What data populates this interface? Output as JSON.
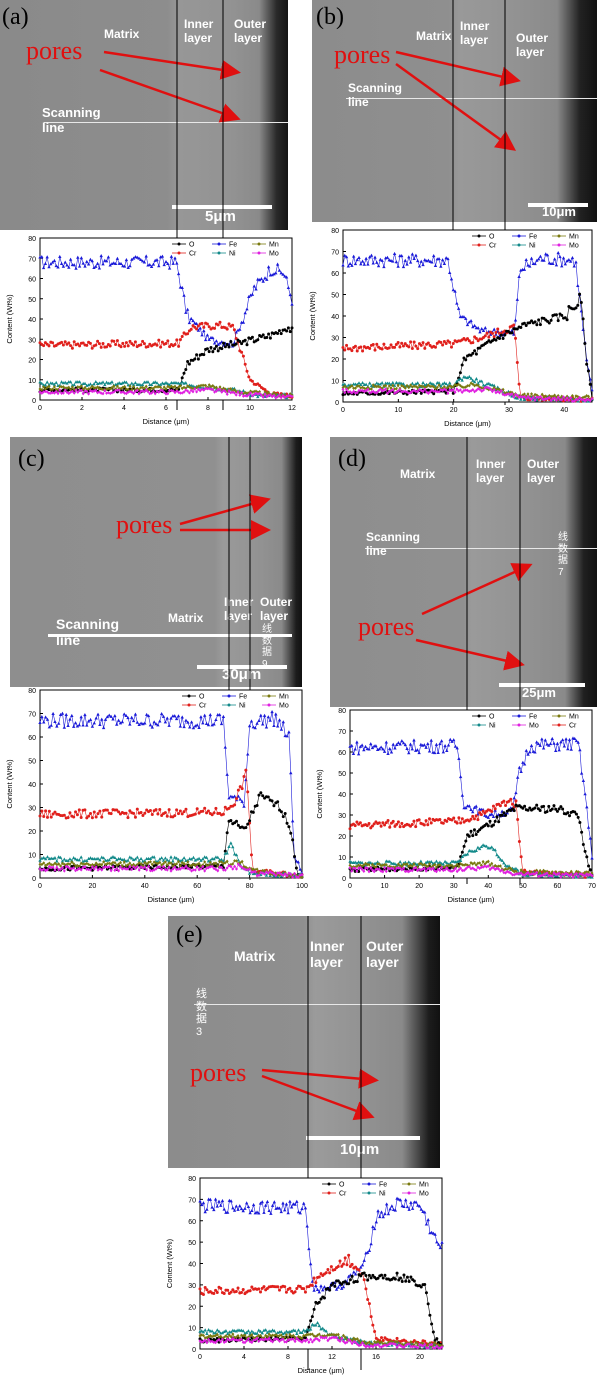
{
  "panels": [
    {
      "label": "(a)",
      "matrix": "Matrix",
      "inner": "Inner\nlayer",
      "outer": "Outer\nlayer",
      "pores": "pores",
      "scan": "Scanning line",
      "scale": "5μm"
    },
    {
      "label": "(b)",
      "matrix": "Matrix",
      "inner": "Inner\nlayer",
      "outer": "Outer layer",
      "pores": "pores",
      "scan": "Scanning line",
      "scale": "10μm"
    },
    {
      "label": "(c)",
      "matrix": "Matrix",
      "inner": "Inner\nlayer",
      "outer": "Outer\nlayer",
      "pores": "pores",
      "scan": "Scanning line",
      "scale": "30μm",
      "scan_tag": "线数据 9"
    },
    {
      "label": "(d)",
      "matrix": "Matrix",
      "inner": "Inner\nlayer",
      "outer": "Outer\nlayer",
      "pores": "pores",
      "scan": "Scanning line",
      "scale": "25μm",
      "scan_tag": "线数据 7"
    },
    {
      "label": "(e)",
      "matrix": "Matrix",
      "inner": "Inner\nlayer",
      "outer": "Outer\nlayer",
      "pores": "pores",
      "scan": "线数据 3",
      "scale": "10μm"
    }
  ],
  "colors": {
    "O": "#000000",
    "Cr": "#e0201c",
    "Fe": "#1a1ad8",
    "Ni": "#138a8a",
    "Mn": "#7a7a10",
    "Mo": "#e020e0"
  },
  "chart_data": [
    {
      "type": "line",
      "xlabel": "Distance (μm)",
      "ylabel": "Content (Wt%)",
      "xlim": [
        0,
        12
      ],
      "ylim": [
        0,
        80
      ],
      "xticks": [
        0,
        2,
        4,
        6,
        8,
        10,
        12
      ],
      "yticks": [
        0,
        10,
        20,
        30,
        40,
        50,
        60,
        70,
        80
      ],
      "legend": [
        "O",
        "Fe",
        "Mn",
        "Cr",
        "Ni",
        "Mo"
      ],
      "interfaces": [
        6.8,
        9.2
      ],
      "series": [
        {
          "name": "Fe",
          "values": [
            [
              0,
              68
            ],
            [
              6.5,
              68
            ],
            [
              7.0,
              42
            ],
            [
              8.0,
              30
            ],
            [
              9.2,
              28
            ],
            [
              10.2,
              55
            ],
            [
              11.0,
              65
            ],
            [
              11.6,
              63
            ],
            [
              12,
              50
            ]
          ]
        },
        {
          "name": "Cr",
          "values": [
            [
              0,
              27
            ],
            [
              6.6,
              28
            ],
            [
              7.2,
              36
            ],
            [
              8.5,
              37
            ],
            [
              9.2,
              36
            ],
            [
              10.0,
              10
            ],
            [
              11.0,
              3
            ],
            [
              12,
              2
            ]
          ]
        },
        {
          "name": "O",
          "values": [
            [
              0,
              5
            ],
            [
              6.6,
              5
            ],
            [
              7.0,
              18
            ],
            [
              8.0,
              25
            ],
            [
              9.5,
              28
            ],
            [
              11.0,
              32
            ],
            [
              11.8,
              36
            ],
            [
              12,
              34
            ]
          ]
        },
        {
          "name": "Ni",
          "values": [
            [
              0,
              8
            ],
            [
              6.6,
              8
            ],
            [
              7.5,
              7
            ],
            [
              9.2,
              5
            ],
            [
              10.5,
              2
            ],
            [
              12,
              2
            ]
          ]
        },
        {
          "name": "Mn",
          "values": [
            [
              0,
              6
            ],
            [
              6.6,
              6
            ],
            [
              8.0,
              7
            ],
            [
              9.5,
              4
            ],
            [
              12,
              2
            ]
          ]
        },
        {
          "name": "Mo",
          "values": [
            [
              0,
              4
            ],
            [
              6.6,
              4
            ],
            [
              8.0,
              5
            ],
            [
              9.5,
              3
            ],
            [
              12,
              1
            ]
          ]
        }
      ]
    },
    {
      "type": "line",
      "xlabel": "Distance (μm)",
      "ylabel": "Content (Wt%)",
      "xlim": [
        0,
        45
      ],
      "ylim": [
        0,
        80
      ],
      "xticks": [
        0,
        10,
        20,
        30,
        40
      ],
      "yticks": [
        0,
        10,
        20,
        30,
        40,
        50,
        60,
        70,
        80
      ],
      "legend": [
        "O",
        "Fe",
        "Mn",
        "Cr",
        "Ni",
        "Mo"
      ],
      "interfaces": [
        21,
        32
      ],
      "series": [
        {
          "name": "Fe",
          "values": [
            [
              0,
              66
            ],
            [
              19,
              66
            ],
            [
              21,
              40
            ],
            [
              25,
              33
            ],
            [
              31,
              32
            ],
            [
              32,
              62
            ],
            [
              36,
              67
            ],
            [
              42,
              66
            ],
            [
              44,
              20
            ],
            [
              45,
              5
            ]
          ]
        },
        {
          "name": "Cr",
          "values": [
            [
              0,
              25
            ],
            [
              20,
              27
            ],
            [
              25,
              30
            ],
            [
              31,
              35
            ],
            [
              32,
              2
            ],
            [
              45,
              1
            ]
          ]
        },
        {
          "name": "O",
          "values": [
            [
              0,
              4
            ],
            [
              20,
              5
            ],
            [
              22,
              20
            ],
            [
              28,
              30
            ],
            [
              33,
              36
            ],
            [
              40,
              40
            ],
            [
              43,
              48
            ],
            [
              44,
              20
            ],
            [
              45,
              2
            ]
          ]
        },
        {
          "name": "Ni",
          "values": [
            [
              0,
              8
            ],
            [
              20,
              8
            ],
            [
              22,
              12
            ],
            [
              26,
              8
            ],
            [
              32,
              2
            ],
            [
              45,
              1
            ]
          ]
        },
        {
          "name": "Mn",
          "values": [
            [
              0,
              7
            ],
            [
              20,
              7
            ],
            [
              24,
              8
            ],
            [
              32,
              3
            ],
            [
              45,
              2
            ]
          ]
        },
        {
          "name": "Mo",
          "values": [
            [
              0,
              5
            ],
            [
              20,
              5
            ],
            [
              26,
              6
            ],
            [
              32,
              2
            ],
            [
              45,
              1
            ]
          ]
        }
      ]
    },
    {
      "type": "line",
      "xlabel": "Distance (μm)",
      "ylabel": "Content (Wt%)",
      "xlim": [
        0,
        100
      ],
      "ylim": [
        0,
        80
      ],
      "xticks": [
        0,
        20,
        40,
        60,
        80,
        100
      ],
      "yticks": [
        0,
        10,
        20,
        30,
        40,
        50,
        60,
        70,
        80
      ],
      "legend": [
        "O",
        "Fe",
        "Mn",
        "Cr",
        "Ni",
        "Mo"
      ],
      "interfaces": [
        71,
        80
      ],
      "series": [
        {
          "name": "Fe",
          "values": [
            [
              0,
              67
            ],
            [
              70,
              67
            ],
            [
              72,
              35
            ],
            [
              78,
              32
            ],
            [
              80,
              66
            ],
            [
              90,
              68
            ],
            [
              95,
              60
            ],
            [
              97,
              10
            ],
            [
              100,
              2
            ]
          ]
        },
        {
          "name": "Cr",
          "values": [
            [
              0,
              27
            ],
            [
              70,
              28
            ],
            [
              74,
              32
            ],
            [
              79,
              44
            ],
            [
              81,
              3
            ],
            [
              100,
              1
            ]
          ]
        },
        {
          "name": "O",
          "values": [
            [
              0,
              4
            ],
            [
              70,
              5
            ],
            [
              72,
              25
            ],
            [
              78,
              20
            ],
            [
              84,
              35
            ],
            [
              92,
              30
            ],
            [
              96,
              20
            ],
            [
              98,
              2
            ],
            [
              100,
              1
            ]
          ]
        },
        {
          "name": "Ni",
          "values": [
            [
              0,
              8
            ],
            [
              70,
              8
            ],
            [
              73,
              15
            ],
            [
              76,
              6
            ],
            [
              80,
              2
            ],
            [
              100,
              1
            ]
          ]
        },
        {
          "name": "Mn",
          "values": [
            [
              0,
              6
            ],
            [
              70,
              6
            ],
            [
              76,
              7
            ],
            [
              82,
              3
            ],
            [
              100,
              1
            ]
          ]
        },
        {
          "name": "Mo",
          "values": [
            [
              0,
              4
            ],
            [
              70,
              4
            ],
            [
              76,
              5
            ],
            [
              82,
              2
            ],
            [
              100,
              1
            ]
          ]
        }
      ]
    },
    {
      "type": "line",
      "xlabel": "Distance (μm)",
      "ylabel": "Content (Wt%)",
      "xlim": [
        0,
        70
      ],
      "ylim": [
        0,
        80
      ],
      "xticks": [
        0,
        10,
        20,
        30,
        40,
        50,
        60,
        70
      ],
      "yticks": [
        0,
        10,
        20,
        30,
        40,
        50,
        60,
        70,
        80
      ],
      "legend": [
        "O",
        "Fe",
        "Mn",
        "Ni",
        "Mo",
        "Cr"
      ],
      "interfaces": [
        32,
        48
      ],
      "series": [
        {
          "name": "Fe",
          "values": [
            [
              0,
              62
            ],
            [
              31,
              63
            ],
            [
              33,
              35
            ],
            [
              40,
              30
            ],
            [
              47,
              32
            ],
            [
              49,
              50
            ],
            [
              52,
              63
            ],
            [
              66,
              64
            ],
            [
              68,
              40
            ],
            [
              70,
              10
            ]
          ]
        },
        {
          "name": "Cr",
          "values": [
            [
              0,
              25
            ],
            [
              31,
              27
            ],
            [
              38,
              30
            ],
            [
              46,
              37
            ],
            [
              48,
              35
            ],
            [
              50,
              3
            ],
            [
              70,
              1
            ]
          ]
        },
        {
          "name": "O",
          "values": [
            [
              0,
              4
            ],
            [
              31,
              5
            ],
            [
              34,
              20
            ],
            [
              40,
              25
            ],
            [
              48,
              33
            ],
            [
              60,
              33
            ],
            [
              66,
              30
            ],
            [
              69,
              5
            ],
            [
              70,
              2
            ]
          ]
        },
        {
          "name": "Ni",
          "values": [
            [
              0,
              7
            ],
            [
              31,
              7
            ],
            [
              34,
              12
            ],
            [
              40,
              16
            ],
            [
              46,
              5
            ],
            [
              50,
              2
            ],
            [
              70,
              1
            ]
          ]
        },
        {
          "name": "Mn",
          "values": [
            [
              0,
              6
            ],
            [
              31,
              6
            ],
            [
              40,
              7
            ],
            [
              48,
              3
            ],
            [
              70,
              2
            ]
          ]
        },
        {
          "name": "Mo",
          "values": [
            [
              0,
              4
            ],
            [
              31,
              4
            ],
            [
              40,
              5
            ],
            [
              48,
              2
            ],
            [
              70,
              1
            ]
          ]
        }
      ]
    },
    {
      "type": "line",
      "xlabel": "Distance (μm)",
      "ylabel": "Content (Wt%)",
      "xlim": [
        0,
        22
      ],
      "ylim": [
        0,
        80
      ],
      "xticks": [
        0,
        4,
        8,
        12,
        16,
        20
      ],
      "yticks": [
        0,
        10,
        20,
        30,
        40,
        50,
        60,
        70,
        80
      ],
      "legend": [
        "O",
        "Fe",
        "Mn",
        "Cr",
        "Ni",
        "Mo"
      ],
      "interfaces": [
        10,
        15
      ],
      "series": [
        {
          "name": "Fe",
          "values": [
            [
              0,
              67
            ],
            [
              9.6,
              66
            ],
            [
              10.3,
              28
            ],
            [
              13,
              30
            ],
            [
              15,
              40
            ],
            [
              16,
              62
            ],
            [
              18,
              68
            ],
            [
              20,
              67
            ],
            [
              21.5,
              50
            ],
            [
              22,
              47
            ]
          ]
        },
        {
          "name": "Cr",
          "values": [
            [
              0,
              27
            ],
            [
              9.6,
              28
            ],
            [
              11,
              35
            ],
            [
              13.5,
              42
            ],
            [
              14.8,
              35
            ],
            [
              16,
              5
            ],
            [
              22,
              2
            ]
          ]
        },
        {
          "name": "O",
          "values": [
            [
              0,
              4
            ],
            [
              9.6,
              5
            ],
            [
              10.5,
              20
            ],
            [
              12,
              30
            ],
            [
              15,
              34
            ],
            [
              18,
              34
            ],
            [
              20.5,
              30
            ],
            [
              21.3,
              5
            ],
            [
              22,
              2
            ]
          ]
        },
        {
          "name": "Ni",
          "values": [
            [
              0,
              8
            ],
            [
              9.6,
              8
            ],
            [
              10.5,
              12
            ],
            [
              12,
              6
            ],
            [
              15,
              3
            ],
            [
              22,
              1
            ]
          ]
        },
        {
          "name": "Mn",
          "values": [
            [
              0,
              6
            ],
            [
              9.6,
              6
            ],
            [
              12,
              7
            ],
            [
              15,
              3
            ],
            [
              22,
              2
            ]
          ]
        },
        {
          "name": "Mo",
          "values": [
            [
              0,
              4
            ],
            [
              9.6,
              4
            ],
            [
              12,
              5
            ],
            [
              15,
              2
            ],
            [
              22,
              1
            ]
          ]
        }
      ]
    }
  ]
}
